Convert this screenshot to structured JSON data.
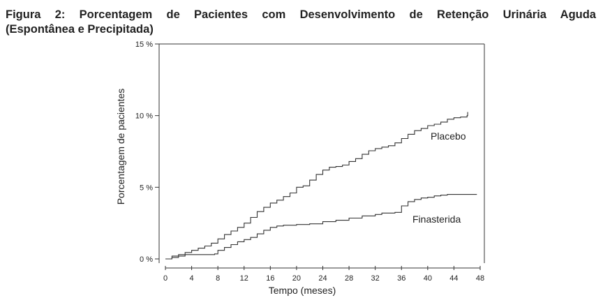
{
  "caption": {
    "line1": "Figura 2: Porcentagem de Pacientes com Desenvolvimento de Retenção Urinária Aguda",
    "line2": "(Espontânea e Precipitada)"
  },
  "chart_data": {
    "type": "line",
    "title": "Figura 2: Porcentagem de Pacientes com Desenvolvimento de Retenção Urinária Aguda (Espontânea e Precipitada)",
    "xlabel": "Tempo (meses)",
    "ylabel": "Porcentagem de pacientes",
    "xlim": [
      0,
      48
    ],
    "ylim": [
      0,
      15
    ],
    "x_ticks": [
      0,
      4,
      8,
      12,
      16,
      20,
      24,
      28,
      32,
      36,
      40,
      44,
      48
    ],
    "y_ticks": [
      0,
      5,
      10,
      15
    ],
    "y_tick_labels": [
      "0 %",
      "5 %",
      "10 %",
      "15 %"
    ],
    "grid": false,
    "step": true,
    "series": [
      {
        "name": "Placebo",
        "x": [
          0,
          1,
          2,
          3,
          4,
          5,
          6,
          7,
          8,
          9,
          10,
          11,
          12,
          13,
          14,
          15,
          16,
          17,
          18,
          19,
          20,
          21,
          22,
          23,
          24,
          25,
          26,
          27,
          28,
          29,
          30,
          31,
          32,
          33,
          34,
          35,
          36,
          37,
          38,
          39,
          40,
          41,
          42,
          43,
          44,
          45,
          46,
          46.1
        ],
        "values": [
          0.0,
          0.2,
          0.3,
          0.45,
          0.6,
          0.75,
          0.9,
          1.1,
          1.4,
          1.7,
          1.95,
          2.2,
          2.5,
          2.9,
          3.3,
          3.6,
          3.9,
          4.1,
          4.35,
          4.6,
          5.0,
          5.1,
          5.5,
          5.9,
          6.2,
          6.4,
          6.45,
          6.55,
          6.8,
          7.0,
          7.3,
          7.55,
          7.7,
          7.8,
          7.9,
          8.1,
          8.4,
          8.7,
          8.95,
          9.1,
          9.3,
          9.4,
          9.55,
          9.75,
          9.85,
          9.9,
          10.0,
          10.25
        ]
      },
      {
        "name": "Finasterida",
        "x": [
          0,
          1,
          2,
          3,
          7.5,
          8,
          9,
          10,
          11,
          12,
          13,
          14,
          15,
          16,
          17,
          18,
          20,
          22,
          24,
          26,
          28,
          30,
          32,
          33,
          35,
          36,
          37,
          38,
          39,
          40,
          41,
          42,
          43,
          44,
          46
        ],
        "values": [
          0.0,
          0.1,
          0.2,
          0.3,
          0.35,
          0.6,
          0.8,
          1.0,
          1.2,
          1.35,
          1.5,
          1.75,
          2.0,
          2.2,
          2.3,
          2.35,
          2.4,
          2.45,
          2.6,
          2.7,
          2.85,
          3.0,
          3.1,
          3.2,
          3.25,
          3.7,
          4.0,
          4.15,
          4.25,
          4.3,
          4.4,
          4.45,
          4.5,
          4.5,
          4.5
        ]
      }
    ],
    "annotations": [
      "Placebo",
      "Finasterida"
    ]
  }
}
